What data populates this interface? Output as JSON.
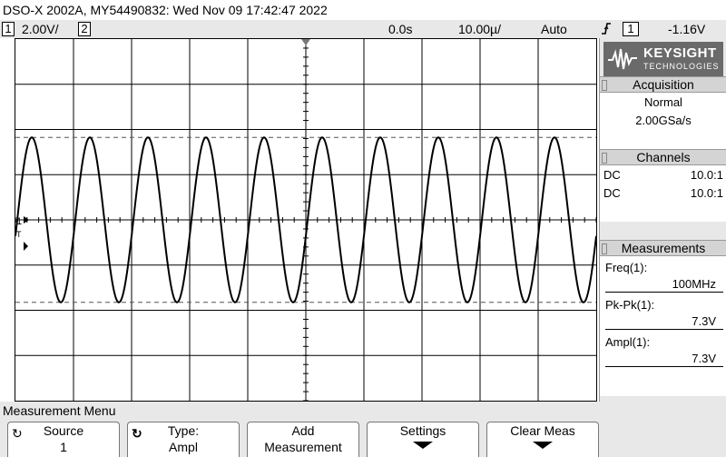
{
  "title": "DSO-X 2002A, MY54490832: Wed Nov 09 17:42:47 2022",
  "status": {
    "ch1_num": "1",
    "ch1_scale": "2.00V/",
    "ch2_num": "2",
    "time_delay": "0.0s",
    "time_scale": "10.00µ/",
    "trigger_mode": "Auto",
    "trigger_slope_icon": "rising-edge-icon",
    "trigger_source": "1",
    "trigger_level": "-1.16V"
  },
  "waveform": {
    "frequency_mhz": 100,
    "cycles_on_screen": 10,
    "amplitude_v": 3.65,
    "volts_per_div": 2.0,
    "color": "#000000",
    "dashed_cursor_levels_v": [
      3.65,
      -3.65
    ],
    "ground_marker": "1",
    "trigger_marker": "T"
  },
  "side": {
    "logo_name": "KEYSIGHT",
    "logo_sub": "TECHNOLOGIES",
    "acquisition": {
      "heading": "Acquisition",
      "mode": "Normal",
      "rate": "2.00GSa/s"
    },
    "channels": {
      "heading": "Channels",
      "rows": [
        {
          "coupling": "DC",
          "probe": "10.0:1"
        },
        {
          "coupling": "DC",
          "probe": "10.0:1"
        }
      ]
    },
    "measurements": {
      "heading": "Measurements",
      "items": [
        {
          "label": "Freq(1):",
          "value": "100MHz"
        },
        {
          "label": "Pk-Pk(1):",
          "value": "7.3V"
        },
        {
          "label": "Ampl(1):",
          "value": "7.3V"
        }
      ]
    }
  },
  "menu": {
    "title": "Measurement Menu",
    "keys": [
      {
        "top": "Source",
        "bottom": "1"
      },
      {
        "top": "Type:",
        "bottom": "Ampl"
      },
      {
        "top": "Add",
        "bottom": "Measurement"
      },
      {
        "top": "Settings",
        "bottom": ""
      },
      {
        "top": "Clear Meas",
        "bottom": ""
      }
    ]
  }
}
